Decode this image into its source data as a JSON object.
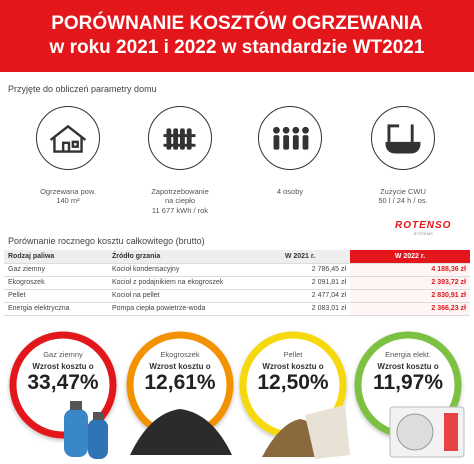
{
  "header": {
    "title_lines": [
      "PORÓWNANIE KOSZTÓW OGRZEWANIA",
      "w roku 2021 i 2022 w standardzie WT2021"
    ]
  },
  "params": {
    "heading": "Przyjęte do obliczeń parametry domu",
    "items": [
      {
        "lines": [
          "Ogrzewana pow.",
          "140 m²"
        ]
      },
      {
        "lines": [
          "Zapotrzebowanie",
          "na ciepło",
          "11 677 kWh / rok"
        ]
      },
      {
        "lines": [
          "4 osoby"
        ]
      },
      {
        "lines": [
          "Zużycie CWU",
          "50 l / 24 h / os."
        ]
      }
    ]
  },
  "logo": {
    "name": "ROTENSO",
    "tagline": "SYSTEMS"
  },
  "table": {
    "heading": "Porównanie rocznego kosztu całkowitego (brutto)",
    "columns": [
      "Rodzaj paliwa",
      "Źródło grzania",
      "W 2021 r.",
      "W 2022 r."
    ],
    "rows": [
      [
        "Gaz ziemny",
        "Kocioł kondensacyjny",
        "2 786,45 zł",
        "4 188,36 zł"
      ],
      [
        "Ekogroszek",
        "Kocioł z podajnikiem na ekogroszek",
        "2 091,81 zł",
        "2 393,72 zł"
      ],
      [
        "Pellet",
        "Kocioł na pellet",
        "2 477,04 zł",
        "2 830,91 zł"
      ],
      [
        "Energia elektryczna",
        "Pompa ciepła powietrze-woda",
        "2 083,01 zł",
        "2 366,23 zł"
      ]
    ]
  },
  "savings": [
    {
      "label": "Gaz ziemny",
      "caption": "Wzrost kosztu o",
      "percent": "33,47%"
    },
    {
      "label": "Ekogroszek",
      "caption": "Wzrost kosztu o",
      "percent": "12,61%"
    },
    {
      "label": "Pellet",
      "caption": "Wzrost kosztu o",
      "percent": "12,50%"
    },
    {
      "label": "Energia elekt.",
      "caption": "Wzrost kosztu o",
      "percent": "11,97%"
    }
  ]
}
